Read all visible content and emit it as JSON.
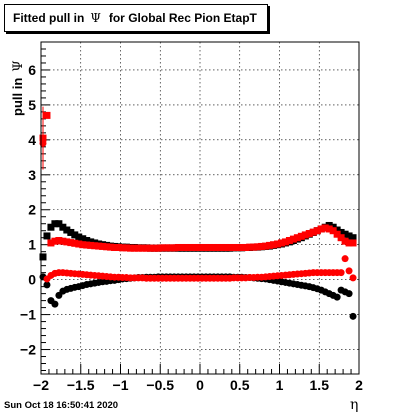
{
  "title": {
    "prefix": "Fitted pull in",
    "symbol": "Ψ",
    "suffix": "for Global Rec Pion EtapT"
  },
  "timestamp": "Sun Oct 18 16:50:41 2020",
  "chart_data": {
    "type": "scatter",
    "xlabel": "η",
    "ylabel_text": "pull in",
    "ylabel_symbol": "Ψ",
    "xlim": [
      -2.0,
      2.0
    ],
    "ylim": [
      -2.7,
      6.8
    ],
    "x_ticks": [
      -2,
      -1.5,
      -1,
      -0.5,
      0,
      0.5,
      1,
      1.5,
      2
    ],
    "x_tick_labels": [
      "−2",
      "−1.5",
      "−1",
      "−0.5",
      "0",
      "0.5",
      "1",
      "1.5",
      "2"
    ],
    "y_ticks": [
      -2,
      -1,
      0,
      1,
      2,
      3,
      4,
      5,
      6
    ],
    "y_tick_labels": [
      "−2",
      "−1",
      "0",
      "1",
      "2",
      "3",
      "4",
      "5",
      "6"
    ],
    "grid": true,
    "series": [
      {
        "color": "#000000",
        "marker": "square",
        "x": [
          -1.975,
          -1.925,
          -1.875,
          -1.825,
          -1.775,
          -1.725,
          -1.675,
          -1.625,
          -1.575,
          -1.525,
          -1.475,
          -1.425,
          -1.375,
          -1.325,
          -1.275,
          -1.225,
          -1.175,
          -1.125,
          -1.075,
          -1.025,
          -0.975,
          -0.925,
          -0.875,
          -0.825,
          -0.775,
          -0.725,
          -0.675,
          -0.625,
          -0.575,
          -0.525,
          -0.475,
          -0.425,
          -0.375,
          -0.325,
          -0.275,
          -0.225,
          -0.175,
          -0.125,
          -0.075,
          -0.025,
          0.025,
          0.075,
          0.125,
          0.175,
          0.225,
          0.275,
          0.325,
          0.375,
          0.425,
          0.475,
          0.525,
          0.575,
          0.625,
          0.675,
          0.725,
          0.775,
          0.825,
          0.875,
          0.925,
          0.975,
          1.025,
          1.075,
          1.125,
          1.175,
          1.225,
          1.275,
          1.325,
          1.375,
          1.425,
          1.475,
          1.525,
          1.575,
          1.625,
          1.675,
          1.725,
          1.775,
          1.825,
          1.875,
          1.925
        ],
        "y": [
          0.65,
          1.25,
          1.5,
          1.6,
          1.6,
          1.5,
          1.42,
          1.35,
          1.28,
          1.22,
          1.17,
          1.12,
          1.08,
          1.05,
          1.02,
          1.0,
          0.98,
          0.96,
          0.95,
          0.94,
          0.93,
          0.93,
          0.92,
          0.92,
          0.91,
          0.91,
          0.91,
          0.9,
          0.9,
          0.9,
          0.9,
          0.9,
          0.9,
          0.9,
          0.9,
          0.9,
          0.9,
          0.9,
          0.9,
          0.9,
          0.9,
          0.9,
          0.9,
          0.9,
          0.9,
          0.9,
          0.9,
          0.9,
          0.91,
          0.91,
          0.91,
          0.92,
          0.92,
          0.93,
          0.93,
          0.94,
          0.95,
          0.96,
          0.98,
          1.0,
          1.02,
          1.05,
          1.08,
          1.12,
          1.16,
          1.2,
          1.25,
          1.3,
          1.35,
          1.4,
          1.45,
          1.5,
          1.55,
          1.5,
          1.42,
          1.35,
          1.3,
          1.25,
          1.2
        ]
      },
      {
        "color": "#000000",
        "marker": "circle",
        "x": [
          -1.975,
          -1.925,
          -1.875,
          -1.825,
          -1.775,
          -1.725,
          -1.675,
          -1.625,
          -1.575,
          -1.525,
          -1.475,
          -1.425,
          -1.375,
          -1.325,
          -1.275,
          -1.225,
          -1.175,
          -1.125,
          -1.075,
          -1.025,
          -0.975,
          -0.925,
          -0.875,
          -0.825,
          -0.775,
          -0.725,
          -0.675,
          -0.625,
          -0.575,
          -0.525,
          -0.475,
          -0.425,
          -0.375,
          -0.325,
          -0.275,
          -0.225,
          -0.175,
          -0.125,
          -0.075,
          -0.025,
          0.025,
          0.075,
          0.125,
          0.175,
          0.225,
          0.275,
          0.325,
          0.375,
          0.425,
          0.475,
          0.525,
          0.575,
          0.625,
          0.675,
          0.725,
          0.775,
          0.825,
          0.875,
          0.925,
          0.975,
          1.025,
          1.075,
          1.125,
          1.175,
          1.225,
          1.275,
          1.325,
          1.375,
          1.425,
          1.475,
          1.525,
          1.575,
          1.625,
          1.675,
          1.725,
          1.775,
          1.825,
          1.875,
          1.925
        ],
        "y": [
          0.08,
          -0.15,
          -0.6,
          -0.7,
          -0.45,
          -0.33,
          -0.28,
          -0.25,
          -0.22,
          -0.2,
          -0.17,
          -0.14,
          -0.12,
          -0.1,
          -0.08,
          -0.06,
          -0.05,
          -0.03,
          -0.02,
          0.0,
          0.02,
          0.03,
          0.04,
          0.05,
          0.06,
          0.06,
          0.07,
          0.07,
          0.07,
          0.08,
          0.08,
          0.08,
          0.08,
          0.08,
          0.08,
          0.08,
          0.08,
          0.08,
          0.08,
          0.08,
          0.08,
          0.08,
          0.08,
          0.08,
          0.08,
          0.08,
          0.08,
          0.08,
          0.07,
          0.07,
          0.07,
          0.06,
          0.06,
          0.05,
          0.04,
          0.03,
          0.02,
          0.0,
          -0.02,
          -0.04,
          -0.06,
          -0.08,
          -0.1,
          -0.12,
          -0.14,
          -0.16,
          -0.18,
          -0.2,
          -0.23,
          -0.26,
          -0.3,
          -0.35,
          -0.4,
          -0.45,
          -0.5,
          -0.3,
          -0.35,
          -0.4,
          -1.05
        ]
      },
      {
        "color": "#ff0000",
        "marker": "square",
        "x": [
          -1.975,
          -1.925,
          -1.875,
          -1.825,
          -1.775,
          -1.725,
          -1.675,
          -1.625,
          -1.575,
          -1.525,
          -1.475,
          -1.425,
          -1.375,
          -1.325,
          -1.275,
          -1.225,
          -1.175,
          -1.125,
          -1.075,
          -1.025,
          -0.975,
          -0.925,
          -0.875,
          -0.825,
          -0.775,
          -0.725,
          -0.675,
          -0.625,
          -0.575,
          -0.525,
          -0.475,
          -0.425,
          -0.375,
          -0.325,
          -0.275,
          -0.225,
          -0.175,
          -0.125,
          -0.075,
          -0.025,
          0.025,
          0.075,
          0.125,
          0.175,
          0.225,
          0.275,
          0.325,
          0.375,
          0.425,
          0.475,
          0.525,
          0.575,
          0.625,
          0.675,
          0.725,
          0.775,
          0.825,
          0.875,
          0.925,
          0.975,
          1.025,
          1.075,
          1.125,
          1.175,
          1.225,
          1.275,
          1.325,
          1.375,
          1.425,
          1.475,
          1.525,
          1.575,
          1.625,
          1.675,
          1.725,
          1.775,
          1.825,
          1.875,
          1.925
        ],
        "y": [
          4.05,
          4.7,
          1.05,
          1.1,
          1.12,
          1.1,
          1.08,
          1.06,
          1.04,
          1.02,
          1.0,
          0.99,
          0.98,
          0.97,
          0.96,
          0.95,
          0.94,
          0.93,
          0.92,
          0.92,
          0.91,
          0.91,
          0.9,
          0.9,
          0.9,
          0.9,
          0.9,
          0.9,
          0.9,
          0.9,
          0.91,
          0.91,
          0.91,
          0.91,
          0.92,
          0.92,
          0.92,
          0.92,
          0.92,
          0.92,
          0.92,
          0.92,
          0.92,
          0.92,
          0.92,
          0.92,
          0.92,
          0.92,
          0.92,
          0.92,
          0.92,
          0.92,
          0.93,
          0.93,
          0.94,
          0.95,
          0.96,
          0.98,
          1.0,
          1.02,
          1.05,
          1.08,
          1.12,
          1.16,
          1.2,
          1.24,
          1.28,
          1.32,
          1.36,
          1.4,
          1.45,
          1.48,
          1.45,
          1.4,
          1.3,
          1.2,
          1.1,
          1.05,
          1.05
        ],
        "yerr": [
          0.9,
          0.0,
          0.0,
          0.0,
          0.0,
          0.0,
          0.0,
          0.0,
          0.0,
          0.0,
          0.0,
          0.0,
          0.0,
          0.0,
          0.0,
          0.0,
          0.0,
          0.0,
          0.0,
          0.0,
          0.0,
          0.0,
          0.0,
          0.0,
          0.0,
          0.0,
          0.0,
          0.0,
          0.0,
          0.0,
          0.0,
          0.0,
          0.0,
          0.0,
          0.0,
          0.0,
          0.0,
          0.0,
          0.0,
          0.0,
          0.0,
          0.0,
          0.0,
          0.0,
          0.0,
          0.0,
          0.0,
          0.0,
          0.0,
          0.0,
          0.0,
          0.0,
          0.0,
          0.0,
          0.0,
          0.0,
          0.0,
          0.0,
          0.0,
          0.0,
          0.0,
          0.0,
          0.0,
          0.0,
          0.0,
          0.0,
          0.0,
          0.0,
          0.0,
          0.0,
          0.0,
          0.0,
          0.0,
          0.0,
          0.0,
          0.0,
          0.0,
          0.0,
          0.0
        ]
      },
      {
        "color": "#ff0000",
        "marker": "circle",
        "x": [
          -1.975,
          -1.925,
          -1.875,
          -1.825,
          -1.775,
          -1.725,
          -1.675,
          -1.625,
          -1.575,
          -1.525,
          -1.475,
          -1.425,
          -1.375,
          -1.325,
          -1.275,
          -1.225,
          -1.175,
          -1.125,
          -1.075,
          -1.025,
          -0.975,
          -0.925,
          -0.875,
          -0.825,
          -0.775,
          -0.725,
          -0.675,
          -0.625,
          -0.575,
          -0.525,
          -0.475,
          -0.425,
          -0.375,
          -0.325,
          -0.275,
          -0.225,
          -0.175,
          -0.125,
          -0.075,
          -0.025,
          0.025,
          0.075,
          0.125,
          0.175,
          0.225,
          0.275,
          0.325,
          0.375,
          0.425,
          0.475,
          0.525,
          0.575,
          0.625,
          0.675,
          0.725,
          0.775,
          0.825,
          0.875,
          0.925,
          0.975,
          1.025,
          1.075,
          1.125,
          1.175,
          1.225,
          1.275,
          1.325,
          1.375,
          1.425,
          1.475,
          1.525,
          1.575,
          1.625,
          1.675,
          1.725,
          1.775,
          1.825,
          1.875,
          1.925
        ],
        "y": [
          3.9,
          0.02,
          0.12,
          0.18,
          0.2,
          0.2,
          0.19,
          0.18,
          0.17,
          0.16,
          0.15,
          0.14,
          0.13,
          0.12,
          0.11,
          0.1,
          0.09,
          0.08,
          0.07,
          0.07,
          0.06,
          0.06,
          0.05,
          0.05,
          0.05,
          0.05,
          0.04,
          0.04,
          0.04,
          0.04,
          0.04,
          0.04,
          0.04,
          0.04,
          0.04,
          0.04,
          0.04,
          0.04,
          0.04,
          0.04,
          0.04,
          0.04,
          0.04,
          0.04,
          0.04,
          0.04,
          0.04,
          0.04,
          0.05,
          0.05,
          0.05,
          0.05,
          0.06,
          0.06,
          0.07,
          0.07,
          0.08,
          0.09,
          0.1,
          0.11,
          0.12,
          0.13,
          0.14,
          0.15,
          0.16,
          0.17,
          0.18,
          0.19,
          0.2,
          0.2,
          0.2,
          0.2,
          0.2,
          0.2,
          0.2,
          0.2,
          0.6,
          0.25,
          0.05
        ]
      }
    ]
  }
}
